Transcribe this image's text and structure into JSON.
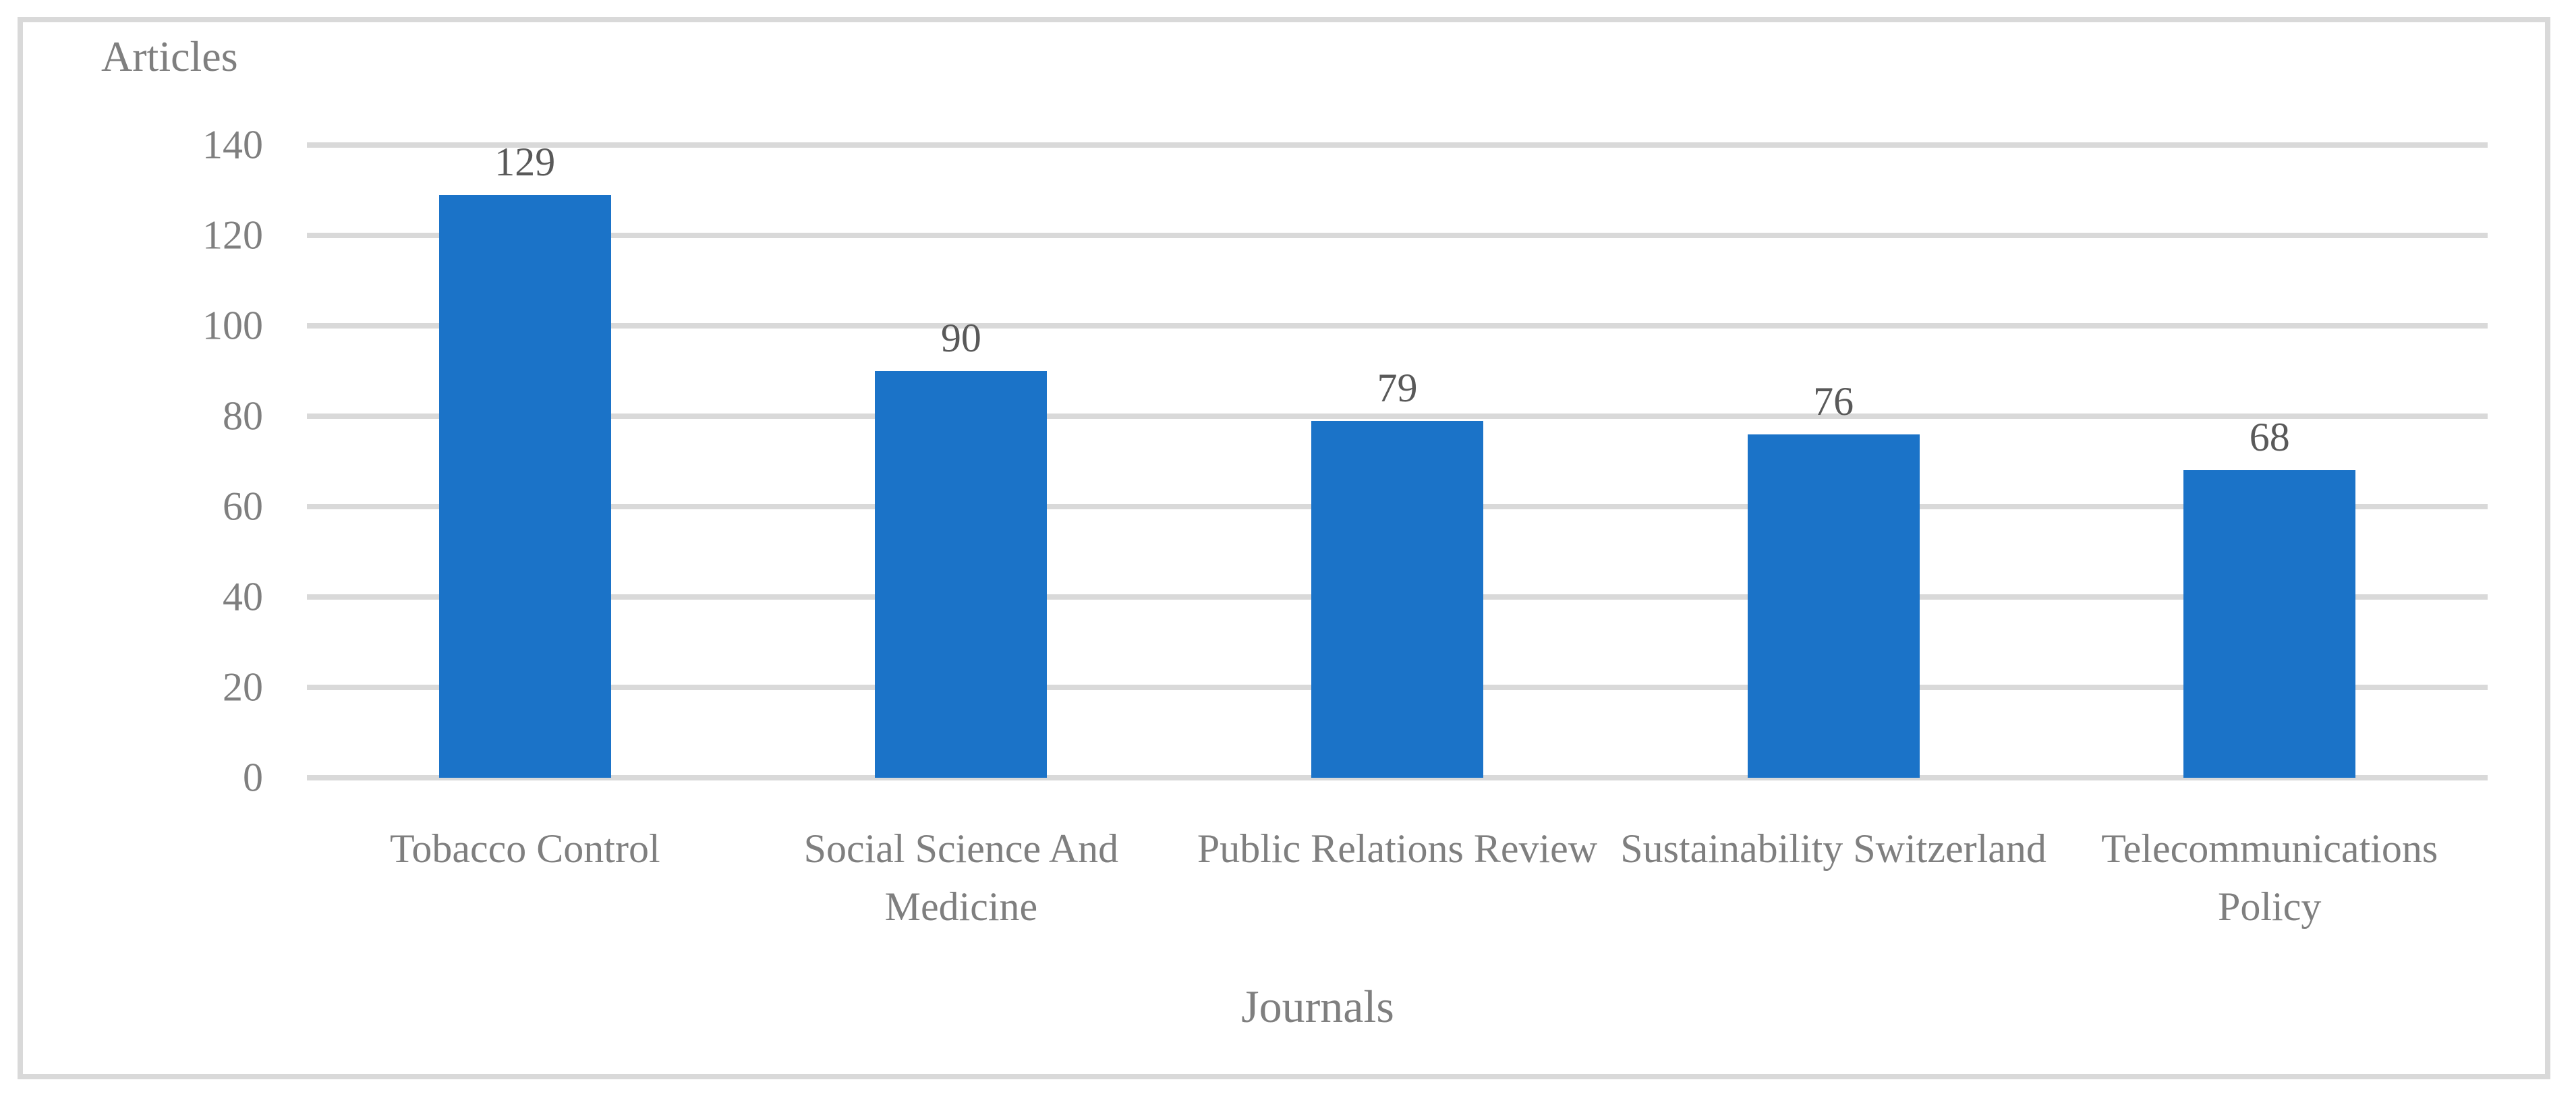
{
  "chart_data": {
    "type": "bar",
    "title": "",
    "categories": [
      "Tobacco Control",
      "Social Science And Medicine",
      "Public Relations Review",
      "Sustainability Switzerland",
      "Telecommunications Policy"
    ],
    "values": [
      129,
      90,
      79,
      76,
      68
    ],
    "data_labels": [
      "129",
      "90",
      "79",
      "76",
      "68"
    ],
    "xlabel": "Journals",
    "ylabel": "Articles",
    "ylim": [
      0,
      140
    ],
    "yticks": [
      0,
      20,
      40,
      60,
      80,
      100,
      120,
      140
    ],
    "grid": true,
    "legend": false,
    "colors": {
      "bar": "#1B73C8",
      "gridline": "#D9D9D9",
      "frame_border": "#D9D9D9",
      "axis_text": "#7F7F7F",
      "data_label_text": "#595959",
      "background": "#FFFFFF"
    }
  }
}
